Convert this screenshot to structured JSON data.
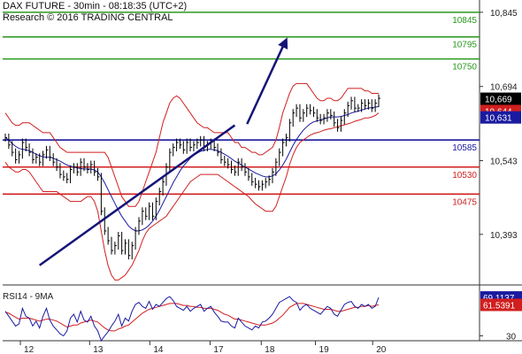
{
  "header": {
    "title": "DAX FUTURE - 30min - 08:18:35 (UTC+2)",
    "research": "Research © 2016 TRADING CENTRAL"
  },
  "colors": {
    "resistance": "#2a9a1f",
    "pivot": "#1a1aa0",
    "support": "#d11f1f",
    "price": "#000000",
    "bollinger": "#d11f1f",
    "ma": "#1a1aa0",
    "trendline": "#141478",
    "rsi": "#1a1aa0",
    "rsi_ma": "#d11f1f",
    "badge_price": "#000000",
    "badge_red": "#d11f1f",
    "badge_blue": "#1a1aa0"
  },
  "chart_data": [
    {
      "type": "line",
      "name": "price",
      "ylim": [
        10290,
        10870
      ],
      "y_ticks": [
        "10,845",
        "10,694",
        "10,543",
        "10,393"
      ],
      "x_ticks": [
        "12",
        "13",
        "14",
        "17",
        "18",
        "19",
        "20"
      ],
      "levels": [
        {
          "label": "10845",
          "value": 10845,
          "kind": "resistance"
        },
        {
          "label": "10795",
          "value": 10795,
          "kind": "resistance"
        },
        {
          "label": "10750",
          "value": 10750,
          "kind": "resistance"
        },
        {
          "label": "10585",
          "value": 10585,
          "kind": "pivot"
        },
        {
          "label": "10530",
          "value": 10530,
          "kind": "support"
        },
        {
          "label": "10475",
          "value": 10475,
          "kind": "support"
        }
      ],
      "badges": [
        {
          "label": "10,669",
          "value": 10669,
          "kind": "price"
        },
        {
          "label": "10,644",
          "value": 10644,
          "kind": "red"
        },
        {
          "label": "10,631",
          "value": 10631,
          "kind": "blue"
        }
      ],
      "close": [
        10590,
        10575,
        10560,
        10545,
        10555,
        10580,
        10570,
        10560,
        10545,
        10550,
        10540,
        10555,
        10565,
        10550,
        10540,
        10530,
        10515,
        10510,
        10505,
        10525,
        10530,
        10520,
        10540,
        10530,
        10525,
        10535,
        10520,
        10510,
        10440,
        10400,
        10380,
        10360,
        10370,
        10390,
        10360,
        10375,
        10350,
        10370,
        10400,
        10420,
        10440,
        10430,
        10450,
        10430,
        10460,
        10480,
        10500,
        10530,
        10560,
        10570,
        10580,
        10575,
        10565,
        10580,
        10570,
        10575,
        10580,
        10585,
        10570,
        10575,
        10580,
        10570,
        10560,
        10545,
        10540,
        10535,
        10525,
        10520,
        10540,
        10530,
        10520,
        10510,
        10500,
        10495,
        10490,
        10495,
        10500,
        10505,
        10520,
        10540,
        10560,
        10580,
        10590,
        10620,
        10640,
        10650,
        10630,
        10640,
        10650,
        10645,
        10640,
        10630,
        10625,
        10630,
        10640,
        10635,
        10620,
        10610,
        10625,
        10640,
        10655,
        10665,
        10650,
        10650,
        10660,
        10655,
        10660,
        10650,
        10660,
        10670
      ],
      "bb_upper": [
        10640,
        10630,
        10620,
        10615,
        10615,
        10620,
        10620,
        10620,
        10615,
        10610,
        10605,
        10600,
        10600,
        10600,
        10590,
        10580,
        10570,
        10565,
        10560,
        10560,
        10560,
        10560,
        10560,
        10560,
        10560,
        10560,
        10560,
        10560,
        10560,
        10560,
        10550,
        10530,
        10510,
        10490,
        10470,
        10460,
        10450,
        10450,
        10450,
        10460,
        10480,
        10500,
        10520,
        10540,
        10560,
        10590,
        10620,
        10640,
        10660,
        10670,
        10675,
        10670,
        10660,
        10650,
        10640,
        10630,
        10620,
        10615,
        10610,
        10610,
        10605,
        10600,
        10600,
        10600,
        10600,
        10600,
        10590,
        10580,
        10580,
        10570,
        10570,
        10565,
        10560,
        10560,
        10555,
        10555,
        10560,
        10565,
        10570,
        10585,
        10610,
        10640,
        10660,
        10680,
        10695,
        10700,
        10700,
        10700,
        10700,
        10690,
        10680,
        10670,
        10665,
        10665,
        10670,
        10670,
        10665,
        10665,
        10670,
        10680,
        10690,
        10690,
        10690,
        10690,
        10690,
        10685,
        10685,
        10680,
        10680,
        10680
      ],
      "bb_lower": [
        10540,
        10530,
        10525,
        10520,
        10520,
        10525,
        10525,
        10520,
        10510,
        10500,
        10490,
        10480,
        10480,
        10480,
        10480,
        10480,
        10475,
        10470,
        10465,
        10460,
        10460,
        10460,
        10460,
        10465,
        10470,
        10470,
        10460,
        10440,
        10400,
        10360,
        10330,
        10310,
        10300,
        10300,
        10305,
        10310,
        10320,
        10330,
        10345,
        10360,
        10380,
        10395,
        10405,
        10410,
        10415,
        10420,
        10425,
        10430,
        10440,
        10450,
        10460,
        10470,
        10480,
        10490,
        10500,
        10505,
        10510,
        10515,
        10515,
        10515,
        10515,
        10515,
        10515,
        10510,
        10505,
        10500,
        10495,
        10490,
        10485,
        10480,
        10475,
        10470,
        10462,
        10455,
        10450,
        10445,
        10440,
        10440,
        10440,
        10450,
        10470,
        10490,
        10510,
        10535,
        10555,
        10570,
        10580,
        10585,
        10590,
        10595,
        10598,
        10600,
        10602,
        10605,
        10607,
        10608,
        10610,
        10612,
        10614,
        10616,
        10618,
        10620,
        10623,
        10625,
        10627,
        10630,
        10630,
        10632,
        10635,
        10640
      ],
      "ma": [
        10590,
        10585,
        10578,
        10572,
        10568,
        10566,
        10565,
        10563,
        10560,
        10556,
        10553,
        10551,
        10550,
        10550,
        10548,
        10545,
        10542,
        10538,
        10534,
        10532,
        10530,
        10528,
        10527,
        10526,
        10526,
        10526,
        10524,
        10520,
        10510,
        10498,
        10484,
        10470,
        10456,
        10442,
        10430,
        10420,
        10410,
        10404,
        10400,
        10400,
        10402,
        10406,
        10412,
        10420,
        10430,
        10442,
        10456,
        10470,
        10484,
        10498,
        10510,
        10522,
        10532,
        10540,
        10548,
        10554,
        10558,
        10562,
        10564,
        10566,
        10566,
        10565,
        10563,
        10560,
        10556,
        10552,
        10547,
        10542,
        10538,
        10534,
        10530,
        10526,
        10522,
        10518,
        10515,
        10512,
        10510,
        10510,
        10512,
        10516,
        10524,
        10534,
        10546,
        10560,
        10574,
        10586,
        10596,
        10605,
        10612,
        10618,
        10622,
        10624,
        10626,
        10628,
        10630,
        10632,
        10632,
        10632,
        10633,
        10635,
        10637,
        10640,
        10642,
        10644,
        10646,
        10648,
        10650,
        10651,
        10652,
        10653
      ],
      "trendline": [
        [
          10,
          10330
        ],
        [
          13,
          10345
        ],
        [
          16,
          10360
        ],
        [
          19,
          10375
        ],
        [
          22,
          10390
        ],
        [
          25,
          10405
        ],
        [
          28,
          10420
        ],
        [
          31,
          10435
        ],
        [
          34,
          10450
        ],
        [
          37,
          10465
        ],
        [
          40,
          10480
        ],
        [
          43,
          10495
        ],
        [
          46,
          10510
        ],
        [
          49,
          10525
        ],
        [
          52,
          10540
        ],
        [
          55,
          10555
        ],
        [
          58,
          10570
        ],
        [
          61,
          10585
        ],
        [
          64,
          10600
        ],
        [
          67,
          10615
        ]
      ],
      "arrow": [
        [
          68,
          10650
        ],
        [
          72,
          10790
        ]
      ]
    },
    {
      "type": "line",
      "name": "RSI14 - 9MA",
      "title": "RSI14 - 9MA",
      "ylim": [
        25,
        80
      ],
      "y_ticks": [
        "30"
      ],
      "badges": [
        {
          "label": "69.1137",
          "value": 69.1137,
          "kind": "blue"
        },
        {
          "label": "61.5391",
          "value": 61.5391,
          "kind": "red"
        }
      ],
      "rsi": [
        55,
        50,
        45,
        40,
        42,
        58,
        50,
        48,
        40,
        45,
        38,
        50,
        58,
        46,
        40,
        36,
        32,
        30,
        35,
        48,
        52,
        44,
        55,
        46,
        44,
        50,
        40,
        35,
        25,
        30,
        34,
        40,
        45,
        52,
        40,
        48,
        45,
        55,
        62,
        64,
        60,
        58,
        65,
        57,
        62,
        60,
        64,
        68,
        70,
        66,
        60,
        58,
        56,
        60,
        55,
        58,
        60,
        62,
        55,
        58,
        60,
        54,
        50,
        45,
        44,
        44,
        40,
        38,
        48,
        44,
        40,
        38,
        36,
        40,
        38,
        44,
        45,
        48,
        52,
        58,
        64,
        66,
        68,
        70,
        66,
        64,
        56,
        60,
        62,
        58,
        56,
        54,
        52,
        56,
        60,
        58,
        52,
        50,
        56,
        62,
        64,
        65,
        60,
        58,
        62,
        60,
        62,
        58,
        60,
        69
      ],
      "rsi_ma": [
        54,
        53,
        51,
        49,
        47,
        48,
        48,
        48,
        47,
        46,
        45,
        46,
        47,
        47,
        46,
        45,
        43,
        41,
        39,
        40,
        41,
        41,
        43,
        44,
        45,
        46,
        45,
        44,
        41,
        38,
        36,
        35,
        35,
        37,
        38,
        40,
        41,
        44,
        47,
        50,
        53,
        55,
        57,
        58,
        59,
        60,
        61,
        62,
        63,
        63,
        63,
        62,
        61,
        61,
        60,
        60,
        59,
        59,
        58,
        58,
        58,
        57,
        56,
        54,
        52,
        51,
        49,
        47,
        47,
        46,
        45,
        44,
        43,
        42,
        41,
        41,
        41,
        42,
        43,
        45,
        48,
        51,
        55,
        59,
        61,
        63,
        63,
        63,
        62,
        61,
        60,
        59,
        58,
        57,
        57,
        57,
        56,
        55,
        55,
        56,
        57,
        58,
        59,
        59,
        60,
        60,
        61,
        60,
        61,
        61.5
      ]
    }
  ],
  "x_tick_index": [
    5,
    28,
    48,
    68,
    85,
    103,
    122
  ]
}
